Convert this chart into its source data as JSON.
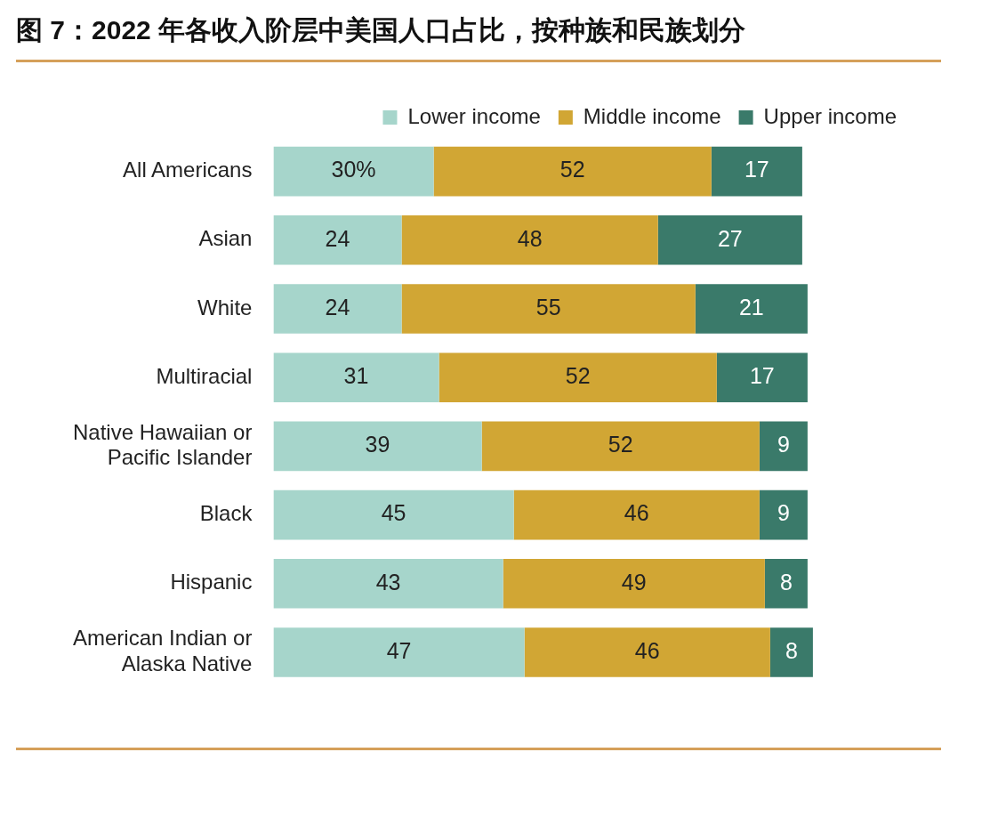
{
  "chart_data": {
    "type": "bar",
    "title": "图 7：2022 年各收入阶层中美国人口占比，按种族和民族划分",
    "orientation": "horizontal",
    "stacked": true,
    "legend": "top",
    "tick_labels": "y",
    "grid": false,
    "categories": [
      "All Americans",
      "Asian",
      "White",
      "Multiracial",
      "Native Hawaiian or Pacific Islander",
      "Black",
      "Hispanic",
      "American Indian or Alaska Native"
    ],
    "series": [
      {
        "name": "Lower income",
        "color": "#a6d5cb",
        "values": [
          30,
          24,
          24,
          31,
          39,
          45,
          43,
          47
        ],
        "value_labels": [
          "30%",
          "24",
          "24",
          "31",
          "39",
          "45",
          "43",
          "47"
        ]
      },
      {
        "name": "Middle income",
        "color": "#d1a634",
        "values": [
          52,
          48,
          55,
          52,
          52,
          46,
          49,
          46
        ],
        "value_labels": [
          "52",
          "48",
          "55",
          "52",
          "52",
          "46",
          "49",
          "46"
        ]
      },
      {
        "name": "Upper income",
        "color": "#3a7a6a",
        "values": [
          17,
          27,
          21,
          17,
          9,
          9,
          8,
          8
        ],
        "value_labels": [
          "17",
          "27",
          "21",
          "17",
          "9",
          "9",
          "8",
          "8"
        ]
      }
    ]
  }
}
